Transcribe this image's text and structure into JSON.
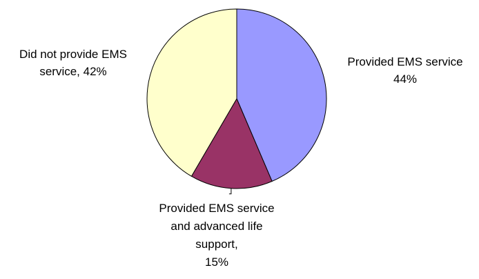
{
  "chart_data": {
    "type": "pie",
    "title": "",
    "slices": [
      {
        "value": 44,
        "label_lines": [
          "Provided EMS service",
          "44%"
        ],
        "color": "#9999ff"
      },
      {
        "value": 15,
        "label_lines": [
          "Provided EMS service",
          "and advanced life",
          "support,",
          "15%"
        ],
        "color": "#993366"
      },
      {
        "value": 42,
        "label_lines": [
          "Did not provide EMS",
          "service, 42%"
        ],
        "color": "#ffffcc"
      }
    ],
    "start_angle_deg": 0,
    "direction": "clockwise",
    "legend": "none"
  }
}
